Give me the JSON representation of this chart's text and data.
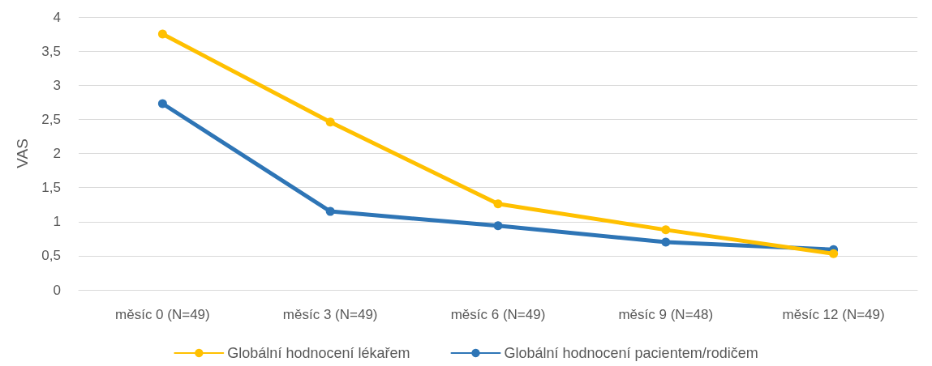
{
  "chart_data": {
    "type": "line",
    "ylabel": "VAS",
    "categories": [
      "měsíc 0 (N=49)",
      "měsíc 3 (N=49)",
      "měsíc 6 (N=49)",
      "měsíc 9 (N=48)",
      "měsíc 12 (N=49)"
    ],
    "series": [
      {
        "name": "Globální hodnocení lékařem",
        "color": "#ffc000",
        "values": [
          3.75,
          2.46,
          1.26,
          0.88,
          0.53
        ]
      },
      {
        "name": "Globální hodnocení pacientem/rodičem",
        "color": "#2e75b6",
        "values": [
          2.73,
          1.15,
          0.94,
          0.7,
          0.59
        ]
      }
    ],
    "ylim": [
      0,
      4
    ],
    "yticks": [
      0,
      {
        "value": 0.5,
        "label": "0,5"
      },
      1,
      {
        "value": 1.5,
        "label": "1,5"
      },
      2,
      {
        "value": 2.5,
        "label": "2,5"
      },
      3,
      {
        "value": 3.5,
        "label": "3,5"
      },
      4
    ],
    "grid": "y",
    "legend": "bottom",
    "marker": "circle",
    "line_style": "solid"
  }
}
